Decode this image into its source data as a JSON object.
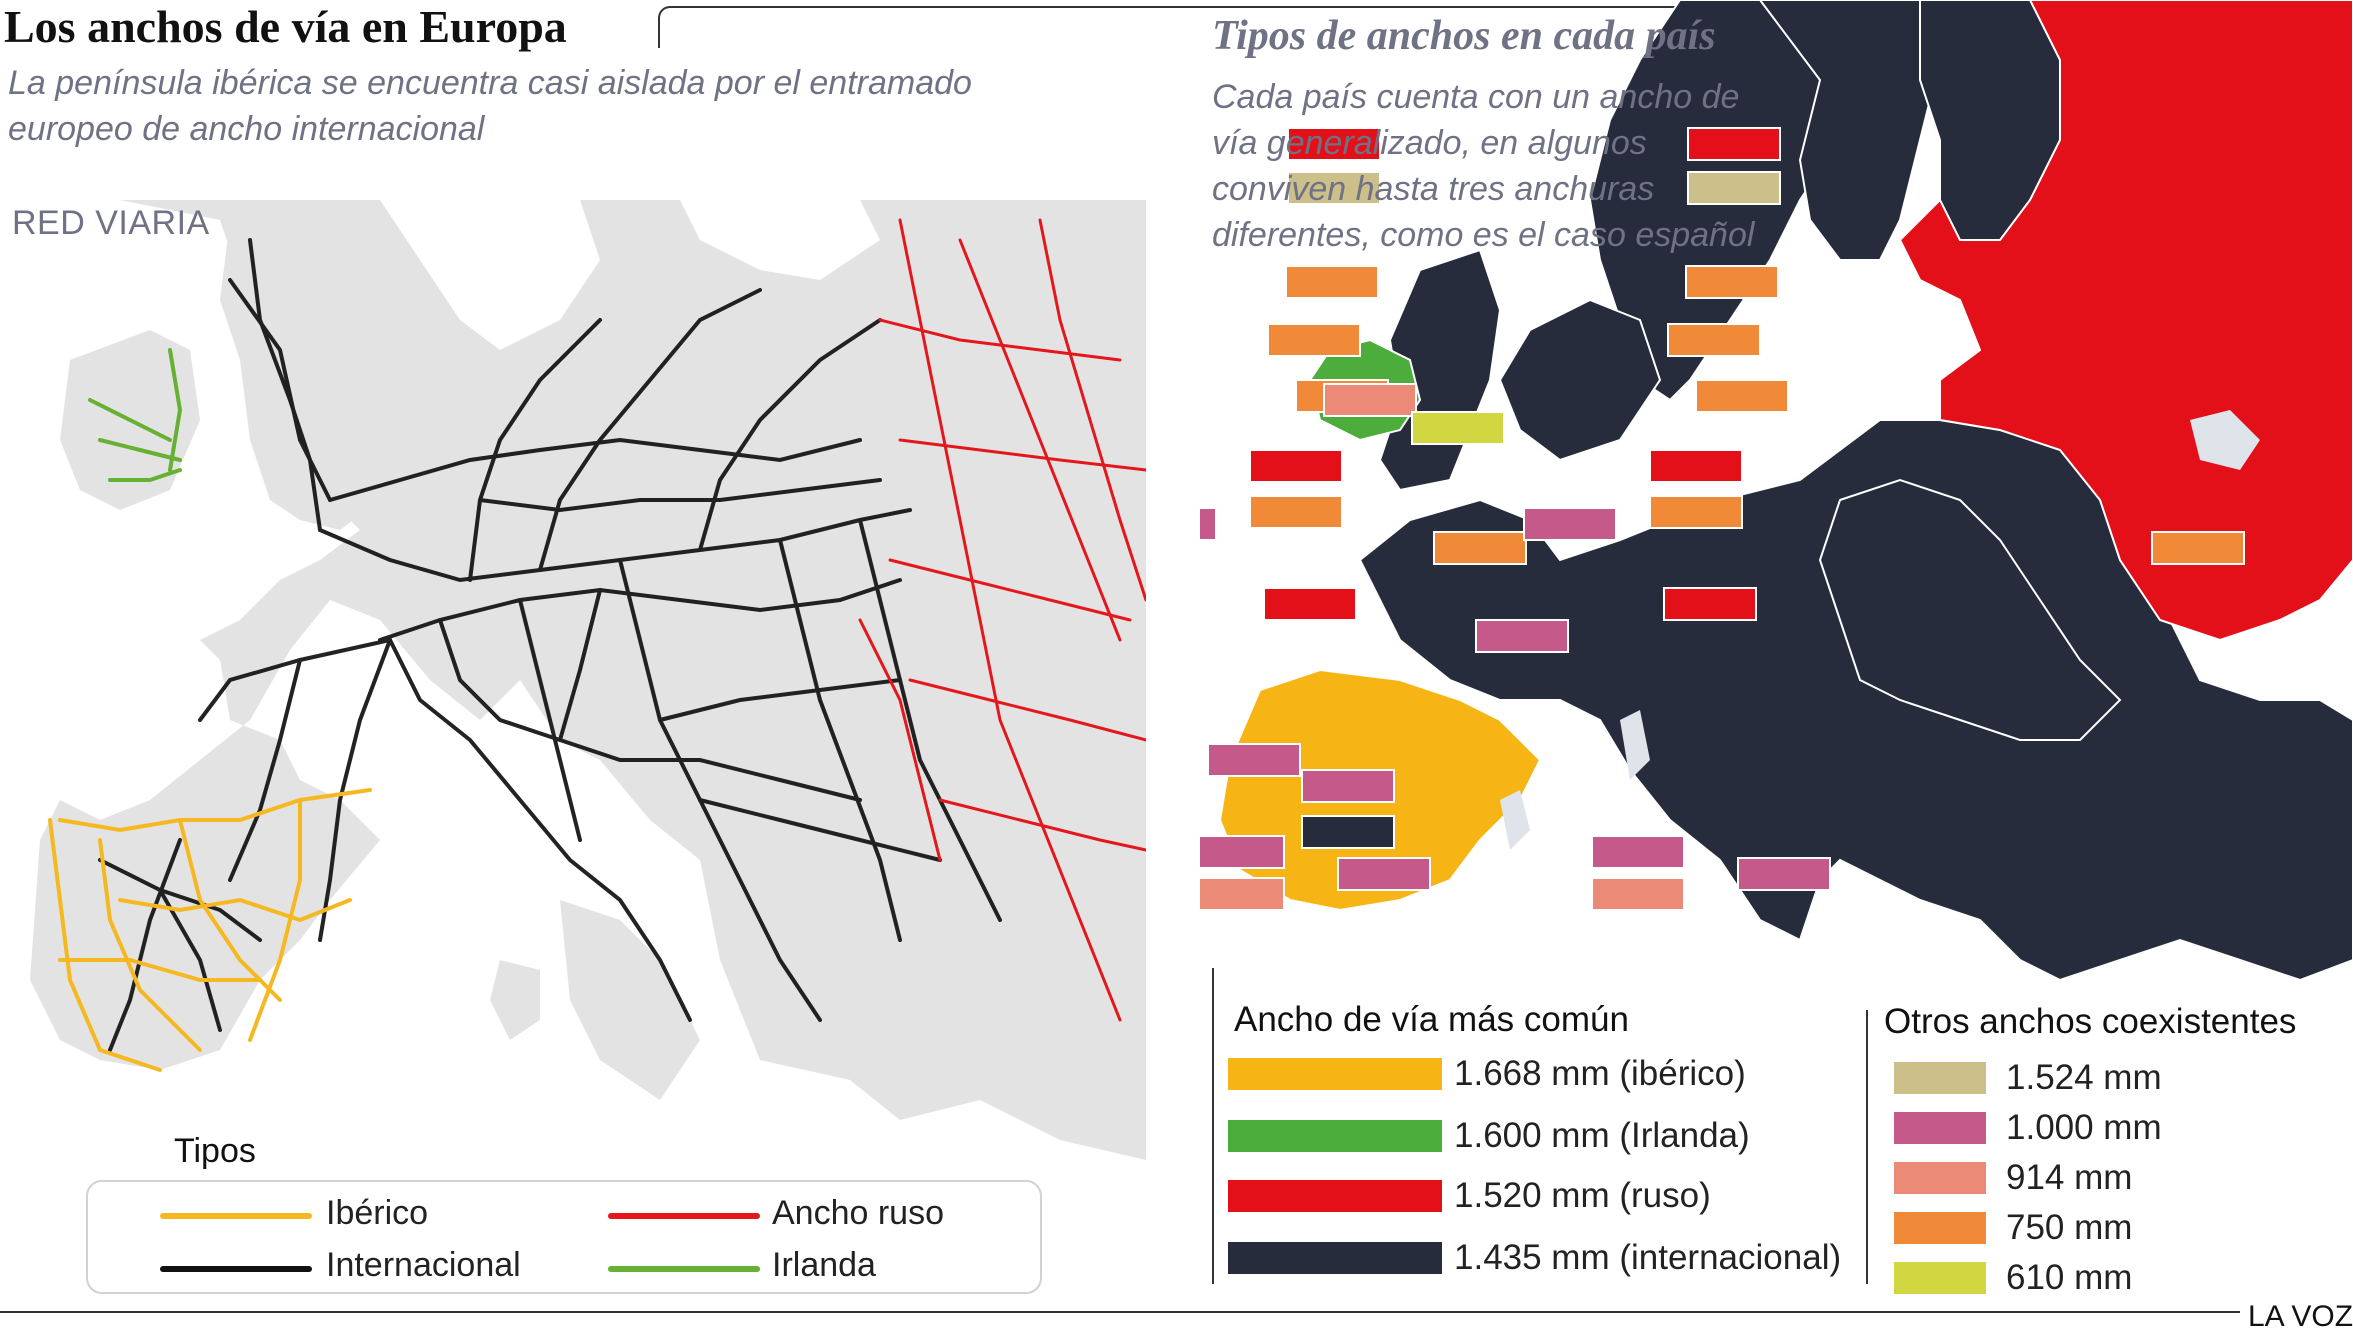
{
  "header": {
    "title": "Los anchos de vía en Europa",
    "subtitle": "La península ibérica se encuentra casi aislada por el entramado europeo de ancho internacional"
  },
  "left_panel": {
    "section_label": "RED VIARIA",
    "legend": {
      "title": "Tipos",
      "items": [
        {
          "label": "Ibérico",
          "color": "#f5b820"
        },
        {
          "label": "Ancho ruso",
          "color": "#e3171c"
        },
        {
          "label": "Internacional",
          "color": "#111111"
        },
        {
          "label": "Irlanda",
          "color": "#66b033"
        }
      ]
    }
  },
  "right_panel": {
    "title": "Tipos de anchos en cada país",
    "description": "Cada país cuenta con un ancho de vía generalizado, en algunos conviven hasta tres anchuras diferentes, como es el caso español",
    "common_legend": {
      "title": "Ancho de vía más común",
      "items": [
        {
          "label": "1.668 mm (ibérico)",
          "color": "#f7b515"
        },
        {
          "label": "1.600 mm (Irlanda)",
          "color": "#4cac3c"
        },
        {
          "label": "1.520 mm (ruso)",
          "color": "#e3101a"
        },
        {
          "label": "1.435 mm (internacional)",
          "color": "#262c3c"
        }
      ]
    },
    "others_legend": {
      "title": "Otros anchos coexistentes",
      "items": [
        {
          "label": "1.524 mm",
          "color": "#cdbf8a"
        },
        {
          "label": "1.000 mm",
          "color": "#c55a8a"
        },
        {
          "label": "914 mm",
          "color": "#eb8a77"
        },
        {
          "label": "750 mm",
          "color": "#f08a38"
        },
        {
          "label": "610 mm",
          "color": "#d2d640"
        }
      ]
    }
  },
  "footer": {
    "credit": "LA VOZ"
  }
}
